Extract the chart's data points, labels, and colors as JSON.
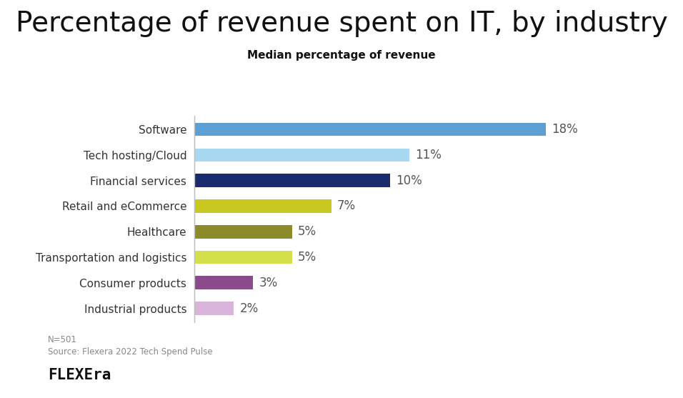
{
  "title": "Percentage of revenue spent on IT, by industry",
  "subtitle": "Median percentage of revenue",
  "categories": [
    "Industrial products",
    "Consumer products",
    "Transportation and logistics",
    "Healthcare",
    "Retail and eCommerce",
    "Financial services",
    "Tech hosting/Cloud",
    "Software"
  ],
  "values": [
    2,
    3,
    5,
    5,
    7,
    10,
    11,
    18
  ],
  "bar_colors": [
    "#d9b3d9",
    "#8b4a8b",
    "#d4e04a",
    "#8b8b2a",
    "#c8c820",
    "#1a2a6e",
    "#a8d8f0",
    "#5b9fd4"
  ],
  "label_suffix": "%",
  "footnote1": "N=501",
  "footnote2": "Source: Flexera 2022 Tech Spend Pulse",
  "logo_text": "FLEXEra",
  "background_color": "#ffffff",
  "title_fontsize": 28,
  "subtitle_fontsize": 11,
  "label_fontsize": 12,
  "category_fontsize": 11,
  "footnote_fontsize": 8.5,
  "logo_fontsize": 15,
  "xlim": [
    0,
    21
  ]
}
